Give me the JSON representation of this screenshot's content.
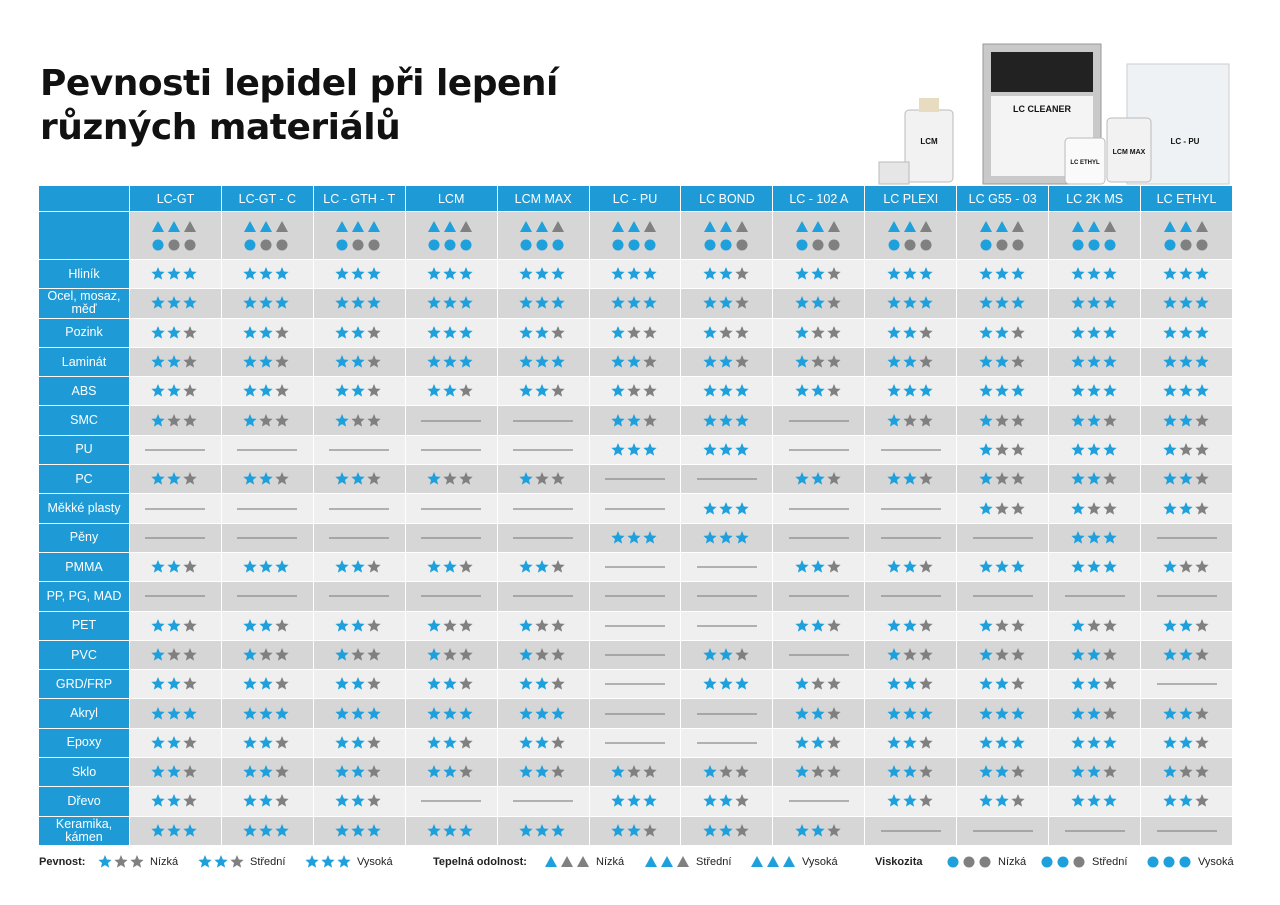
{
  "title": "Pevnosti lepidel při lepení různých materiálů",
  "packaging": [
    "LC CLEANER",
    "LCM",
    "LCM MAX",
    "LC - PU",
    "LC ETHYL"
  ],
  "table": {
    "columns": [
      {
        "name": "LC-GT",
        "thermal": 2,
        "viscosity": 1
      },
      {
        "name": "LC-GT - C",
        "thermal": 2,
        "viscosity": 1
      },
      {
        "name": "LC - GTH - T",
        "thermal": 3,
        "viscosity": 1
      },
      {
        "name": "LCM",
        "thermal": 2,
        "viscosity": 3
      },
      {
        "name": "LCM MAX",
        "thermal": 2,
        "viscosity": 3
      },
      {
        "name": "LC - PU",
        "thermal": 2,
        "viscosity": 3
      },
      {
        "name": "LC BOND",
        "thermal": 2,
        "viscosity": 2
      },
      {
        "name": "LC - 102 A",
        "thermal": 2,
        "viscosity": 1
      },
      {
        "name": "LC PLEXI",
        "thermal": 2,
        "viscosity": 1
      },
      {
        "name": "LC G55 - 03",
        "thermal": 2,
        "viscosity": 1
      },
      {
        "name": "LC 2K MS",
        "thermal": 2,
        "viscosity": 3
      },
      {
        "name": "LC ETHYL",
        "thermal": 2,
        "viscosity": 1
      }
    ],
    "rows": [
      {
        "material": "Hliník",
        "ratings": [
          3,
          3,
          3,
          3,
          3,
          3,
          2,
          2,
          3,
          3,
          3,
          3
        ]
      },
      {
        "material": "Ocel, mosaz, měď",
        "ratings": [
          3,
          3,
          3,
          3,
          3,
          3,
          2,
          2,
          3,
          3,
          3,
          3
        ]
      },
      {
        "material": "Pozink",
        "ratings": [
          2,
          2,
          2,
          3,
          2,
          1,
          1,
          1,
          2,
          2,
          3,
          3
        ]
      },
      {
        "material": "Laminát",
        "ratings": [
          2,
          2,
          2,
          3,
          3,
          2,
          2,
          1,
          2,
          2,
          3,
          3
        ]
      },
      {
        "material": "ABS",
        "ratings": [
          2,
          2,
          2,
          2,
          2,
          1,
          3,
          2,
          3,
          3,
          3,
          3
        ]
      },
      {
        "material": "SMC",
        "ratings": [
          1,
          1,
          1,
          0,
          0,
          2,
          3,
          0,
          1,
          1,
          2,
          2
        ]
      },
      {
        "material": "PU",
        "ratings": [
          0,
          0,
          0,
          0,
          0,
          3,
          3,
          0,
          0,
          1,
          3,
          1
        ]
      },
      {
        "material": "PC",
        "ratings": [
          2,
          2,
          2,
          1,
          1,
          0,
          0,
          2,
          2,
          1,
          2,
          2
        ]
      },
      {
        "material": "Měkké plasty",
        "ratings": [
          0,
          0,
          0,
          0,
          0,
          0,
          3,
          0,
          0,
          1,
          1,
          2
        ]
      },
      {
        "material": "Pěny",
        "ratings": [
          0,
          0,
          0,
          0,
          0,
          3,
          3,
          0,
          0,
          0,
          3,
          0
        ]
      },
      {
        "material": "PMMA",
        "ratings": [
          2,
          3,
          2,
          2,
          2,
          0,
          0,
          2,
          2,
          3,
          3,
          1
        ]
      },
      {
        "material": "PP, PG, MAD",
        "ratings": [
          0,
          0,
          0,
          0,
          0,
          0,
          0,
          0,
          0,
          0,
          0,
          0
        ]
      },
      {
        "material": "PET",
        "ratings": [
          2,
          2,
          2,
          1,
          1,
          0,
          0,
          2,
          2,
          1,
          1,
          2
        ]
      },
      {
        "material": "PVC",
        "ratings": [
          1,
          1,
          1,
          1,
          1,
          0,
          2,
          0,
          1,
          1,
          2,
          2
        ]
      },
      {
        "material": "GRD/FRP",
        "ratings": [
          2,
          2,
          2,
          2,
          2,
          0,
          3,
          1,
          2,
          2,
          2,
          0
        ]
      },
      {
        "material": "Akryl",
        "ratings": [
          3,
          3,
          3,
          3,
          3,
          0,
          0,
          2,
          3,
          3,
          2,
          2
        ]
      },
      {
        "material": "Epoxy",
        "ratings": [
          2,
          2,
          2,
          2,
          2,
          0,
          0,
          2,
          2,
          3,
          3,
          2
        ]
      },
      {
        "material": "Sklo",
        "ratings": [
          2,
          2,
          2,
          2,
          2,
          1,
          1,
          1,
          2,
          2,
          2,
          1
        ]
      },
      {
        "material": "Dřevo",
        "ratings": [
          2,
          2,
          2,
          0,
          0,
          3,
          2,
          0,
          2,
          2,
          3,
          2
        ]
      },
      {
        "material": "Keramika, kámen",
        "ratings": [
          3,
          3,
          3,
          3,
          3,
          2,
          2,
          2,
          0,
          0,
          0,
          0
        ]
      }
    ]
  },
  "legend": {
    "strength": {
      "label": "Pevnost:",
      "levels": [
        "Nízká",
        "Střední",
        "Vysoká"
      ]
    },
    "thermal": {
      "label": "Tepelná odolnost:",
      "levels": [
        "Nízká",
        "Střední",
        "Vysoká"
      ]
    },
    "viscosity": {
      "label": "Viskozita",
      "levels": [
        "Nízká",
        "Střední",
        "Vysoká"
      ]
    }
  }
}
